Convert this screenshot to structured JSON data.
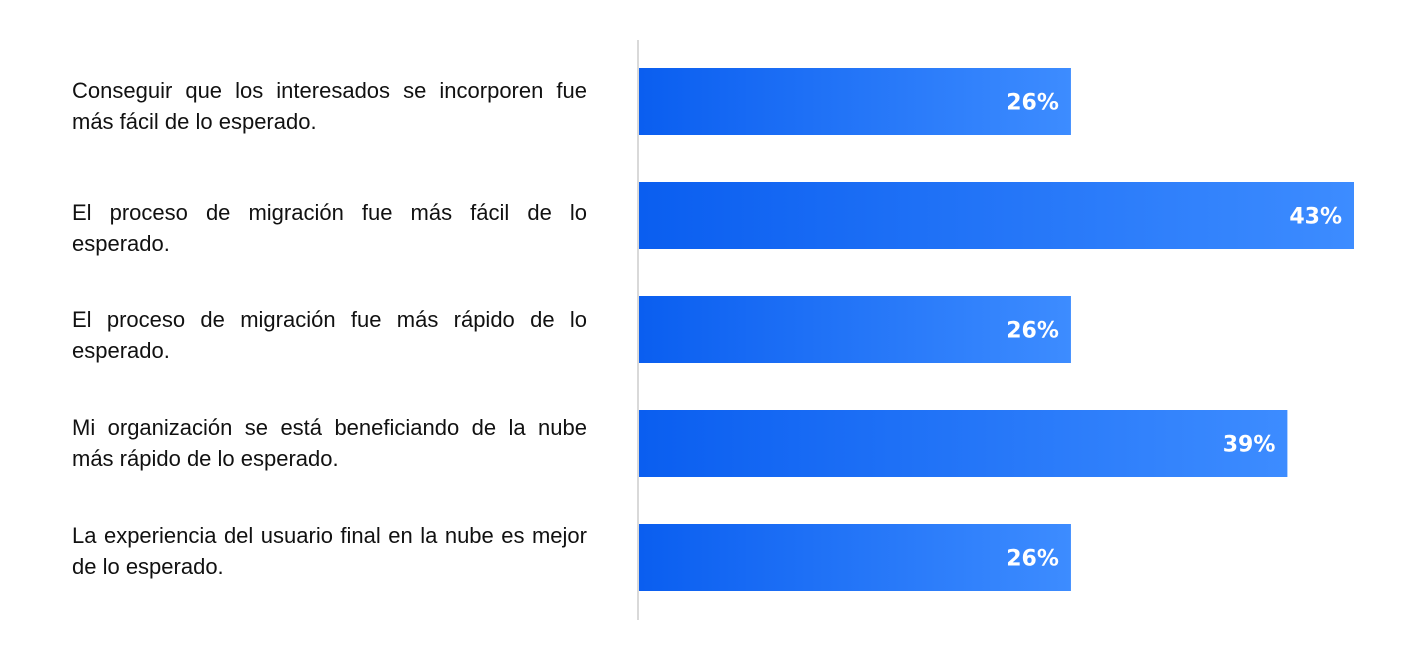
{
  "chart_data": {
    "type": "bar",
    "orientation": "horizontal",
    "categories": [
      "Conseguir que los interesados se incorporen fue más fácil de lo esperado.",
      "El proceso de migración fue más fácil de lo esperado.",
      "El proceso de migración fue más rápido de lo esperado.",
      "Mi organización se está beneficiando de la nube más rápido de lo esperado.",
      "La experiencia del usuario final en la nube es mejor de lo esperado."
    ],
    "series": [
      {
        "values": [
          26,
          43,
          26,
          39,
          26
        ],
        "labels": [
          "26%",
          "43%",
          "26%",
          "39%",
          "26%"
        ]
      }
    ],
    "title": "",
    "xlabel": "",
    "ylabel": "",
    "xlim": [
      0,
      43
    ],
    "grid": false,
    "legend": "none",
    "colors": {
      "bar_start": "#0a5ef0",
      "bar_end": "#3d8cff",
      "axis": "#d9d9d9",
      "label_text": "#ffffff"
    }
  }
}
